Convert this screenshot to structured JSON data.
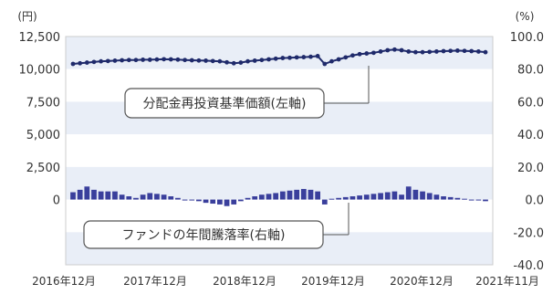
{
  "chart_data": {
    "type": "line",
    "left_unit": "(円)",
    "right_unit": "(%)",
    "left_ticks": [
      "12,500",
      "10,000",
      "7,500",
      "5,000",
      "2,500",
      "0"
    ],
    "right_ticks": [
      "100.0",
      "80.0",
      "60.0",
      "40.0",
      "20.0",
      "0.0",
      "-20.0",
      "-40.0"
    ],
    "x_ticks": [
      "2016年12月",
      "2017年12月",
      "2018年12月",
      "2019年12月",
      "2020年12月",
      "2021年11月"
    ],
    "left_ylim": [
      -5000,
      12500
    ],
    "right_ylim": [
      -40,
      100
    ],
    "nav_series": {
      "name": "分配金再投資基準価額(左軸)",
      "color": "#1f2a6b",
      "values": [
        10400,
        10450,
        10500,
        10550,
        10600,
        10620,
        10650,
        10680,
        10700,
        10700,
        10720,
        10720,
        10740,
        10760,
        10750,
        10730,
        10700,
        10680,
        10660,
        10650,
        10620,
        10600,
        10520,
        10450,
        10500,
        10600,
        10650,
        10700,
        10750,
        10800,
        10850,
        10870,
        10900,
        10920,
        10950,
        11000,
        10400,
        10600,
        10750,
        10900,
        11050,
        11150,
        11200,
        11250,
        11350,
        11450,
        11500,
        11450,
        11350,
        11300,
        11300,
        11320,
        11350,
        11380,
        11400,
        11420,
        11400,
        11380,
        11350,
        11300
      ]
    },
    "drawdown_series": {
      "name": "ファンドの年間騰落率(右軸)",
      "color": "#3a3f9c",
      "values": [
        4.5,
        6,
        8,
        6,
        5,
        5,
        5,
        3,
        2,
        1,
        3,
        4,
        3.5,
        3,
        2,
        1,
        0,
        -0.5,
        -1,
        -2,
        -2.5,
        -3,
        -4,
        -3,
        -1,
        1,
        2,
        3,
        3.5,
        4,
        5,
        5.5,
        6,
        6.5,
        6,
        5,
        -3,
        0.5,
        1,
        1.5,
        2,
        2.5,
        3,
        3.5,
        4,
        4.5,
        5,
        3,
        8,
        6,
        5,
        4,
        3,
        2,
        1.5,
        1,
        0.5,
        0,
        -0.5,
        -1
      ]
    }
  },
  "callouts": {
    "nav_label": "分配金再投資基準価額(左軸)",
    "drawdown_label": "ファンドの年間騰落率(右軸)"
  }
}
